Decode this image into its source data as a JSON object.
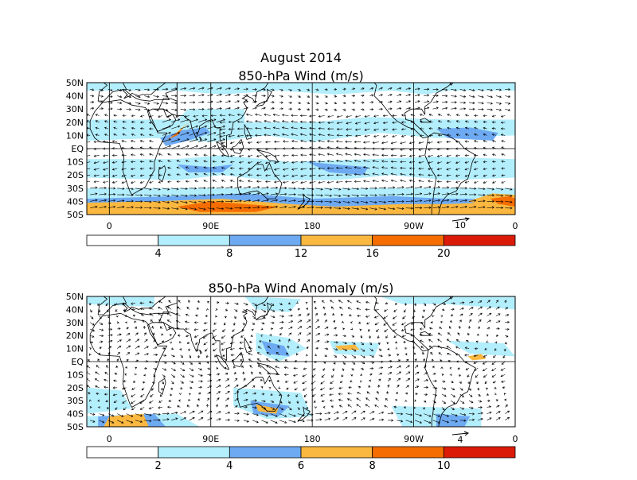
{
  "title": "August 2014",
  "colors": {
    "white": "#ffffff",
    "light_blue": "#b3eefc",
    "mid_blue": "#6eaaf2",
    "light_orange": "#fbb840",
    "orange": "#f56d00",
    "red": "#dc1a08",
    "land": "#000000",
    "arrow": "#000000"
  },
  "panels": [
    {
      "title": "850-hPa Wind (m/s)",
      "lat_labels": [
        "50N",
        "40N",
        "30N",
        "20N",
        "10N",
        "EQ",
        "10S",
        "20S",
        "30S",
        "40S",
        "50S"
      ],
      "lon_labels": [
        "0",
        "90E",
        "180",
        "90W",
        "0"
      ],
      "reference_vector": "10",
      "colorbar": {
        "labels": [
          "4",
          "8",
          "12",
          "16",
          "20"
        ],
        "colors": [
          "#ffffff",
          "#b3eefc",
          "#6eaaf2",
          "#fbb840",
          "#f56d00",
          "#dc1a08"
        ]
      }
    },
    {
      "title": "850-hPa Wind Anomaly (m/s)",
      "lat_labels": [
        "50N",
        "40N",
        "30N",
        "20N",
        "10N",
        "EQ",
        "10S",
        "20S",
        "30S",
        "40S",
        "50S"
      ],
      "lon_labels": [
        "0",
        "90E",
        "180",
        "90W",
        "0"
      ],
      "reference_vector": "4",
      "colorbar": {
        "labels": [
          "2",
          "4",
          "6",
          "8",
          "10"
        ],
        "colors": [
          "#ffffff",
          "#b3eefc",
          "#6eaaf2",
          "#fbb840",
          "#f56d00",
          "#dc1a08"
        ]
      }
    }
  ]
}
